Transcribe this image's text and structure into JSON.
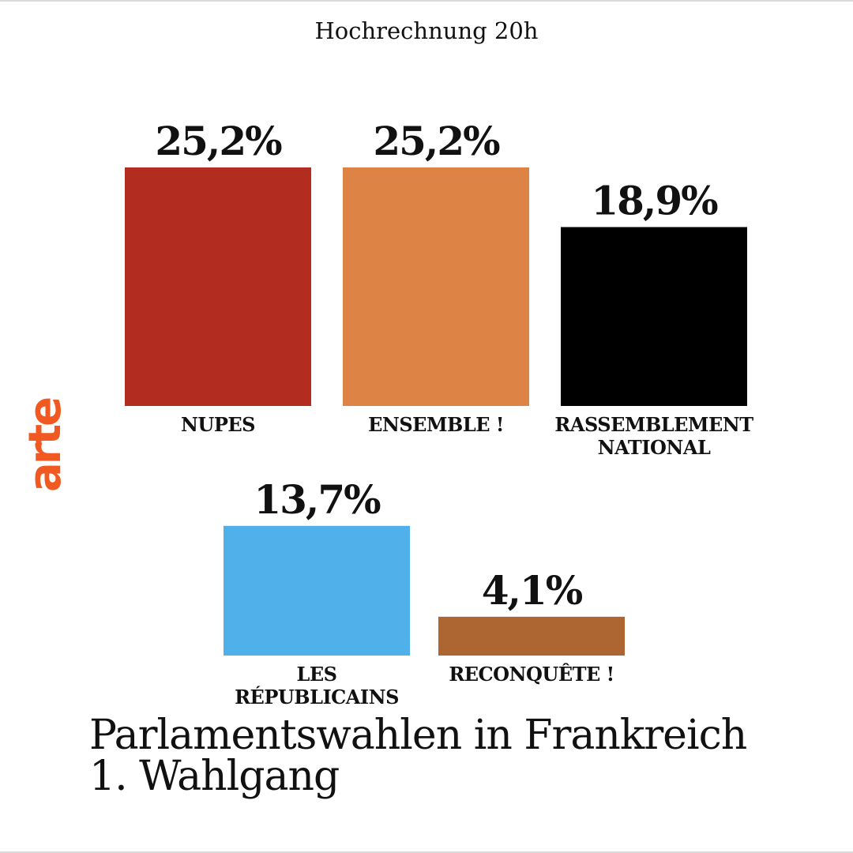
{
  "header": {
    "subtitle": "Hochrechnung 20h"
  },
  "logo": {
    "text": "arte",
    "color": "#f05a22"
  },
  "title": {
    "line1": "Parlamentswahlen in Frankreich",
    "line2": "1. Wahlgang"
  },
  "chart_data": {
    "type": "bar",
    "title": "Parlamentswahlen in Frankreich 1. Wahlgang",
    "subtitle": "Hochrechnung 20h",
    "unit": "%",
    "bars": [
      {
        "category": "NUPES",
        "label_lines": [
          "NUPES"
        ],
        "value": 25.2,
        "value_label": "25,2%",
        "color": "#b22c20"
      },
      {
        "category": "ENSEMBLE !",
        "label_lines": [
          "ENSEMBLE !"
        ],
        "value": 25.2,
        "value_label": "25,2%",
        "color": "#dd8345"
      },
      {
        "category": "RASSEMBLEMENT NATIONAL",
        "label_lines": [
          "RASSEMBLEMENT",
          "NATIONAL"
        ],
        "value": 18.9,
        "value_label": "18,9%",
        "color": "#000000"
      },
      {
        "category": "LES RÉPUBLICAINS",
        "label_lines": [
          "LES",
          "RÉPUBLICAINS"
        ],
        "value": 13.7,
        "value_label": "13,7%",
        "color": "#50b0ea"
      },
      {
        "category": "RECONQUÊTE !",
        "label_lines": [
          "RECONQUÊTE !"
        ],
        "value": 4.1,
        "value_label": "4,1%",
        "color": "#ad6631"
      }
    ]
  }
}
